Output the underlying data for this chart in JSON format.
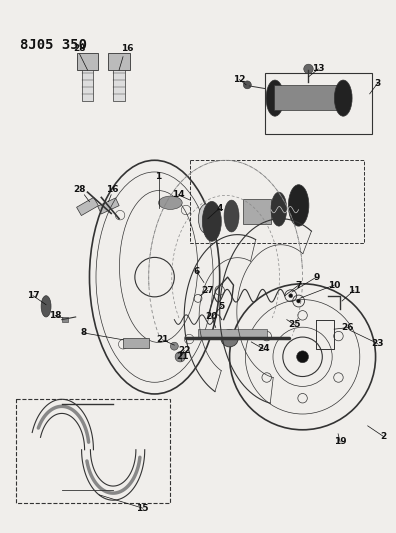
{
  "title": "8J05 350",
  "bg_color": "#f0eeeb",
  "text_color": "#111111",
  "title_fontsize": 10,
  "label_fontsize": 6.5,
  "figsize": [
    3.96,
    5.33
  ],
  "dpi": 100,
  "line_color": "#333333",
  "dark_color": "#111111"
}
